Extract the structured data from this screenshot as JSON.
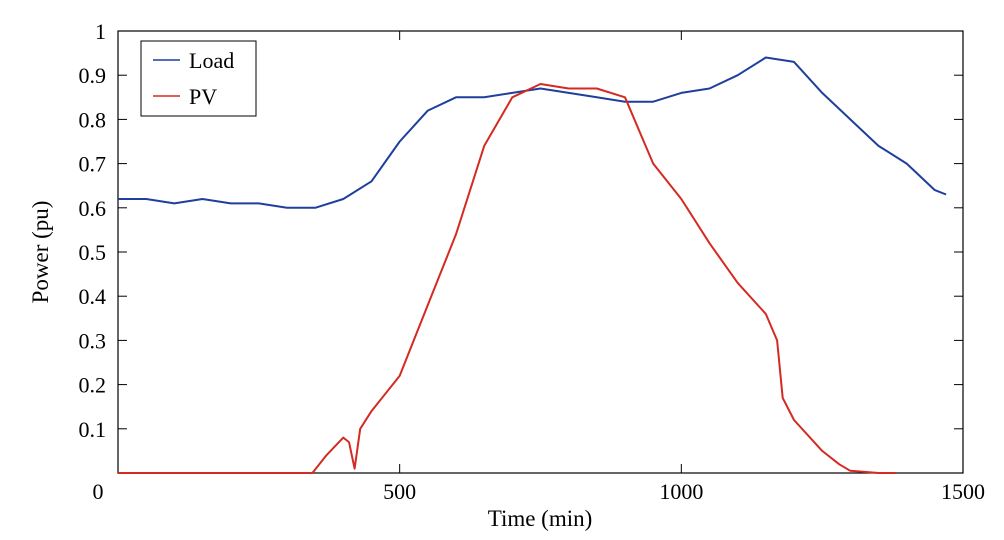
{
  "chart_data": {
    "type": "line",
    "xlabel": "Time (min)",
    "ylabel": "Power (pu)",
    "xlim": [
      0,
      1500
    ],
    "ylim": [
      0,
      1
    ],
    "x_ticks": [
      "0",
      "500",
      "1000",
      "1500"
    ],
    "y_ticks": [
      "0.1",
      "0.2",
      "0.3",
      "0.4",
      "0.5",
      "0.6",
      "0.7",
      "0.8",
      "0.9",
      "1"
    ],
    "grid": false,
    "legend_position": "top-left",
    "series": [
      {
        "name": "Load",
        "color": "#1f3f9c",
        "x": [
          0,
          50,
          100,
          150,
          200,
          250,
          300,
          350,
          400,
          450,
          500,
          550,
          600,
          650,
          700,
          750,
          800,
          850,
          900,
          950,
          1000,
          1050,
          1100,
          1150,
          1200,
          1250,
          1300,
          1350,
          1400,
          1450,
          1470
        ],
        "y": [
          0.62,
          0.62,
          0.61,
          0.62,
          0.61,
          0.61,
          0.6,
          0.6,
          0.62,
          0.66,
          0.75,
          0.82,
          0.85,
          0.85,
          0.86,
          0.87,
          0.86,
          0.85,
          0.84,
          0.84,
          0.86,
          0.87,
          0.9,
          0.94,
          0.93,
          0.86,
          0.8,
          0.74,
          0.7,
          0.64,
          0.63
        ]
      },
      {
        "name": "PV",
        "color": "#d42a22",
        "x": [
          0,
          100,
          200,
          300,
          345,
          370,
          400,
          410,
          420,
          430,
          450,
          500,
          550,
          600,
          650,
          700,
          750,
          800,
          850,
          900,
          930,
          950,
          1000,
          1050,
          1100,
          1150,
          1170,
          1180,
          1200,
          1250,
          1280,
          1300,
          1350,
          1380
        ],
        "y": [
          0,
          0,
          0,
          0,
          0,
          0.04,
          0.08,
          0.07,
          0.01,
          0.1,
          0.14,
          0.22,
          0.38,
          0.54,
          0.74,
          0.85,
          0.88,
          0.87,
          0.87,
          0.85,
          0.76,
          0.7,
          0.62,
          0.52,
          0.43,
          0.36,
          0.3,
          0.17,
          0.12,
          0.05,
          0.02,
          0.005,
          0,
          0
        ]
      }
    ]
  }
}
